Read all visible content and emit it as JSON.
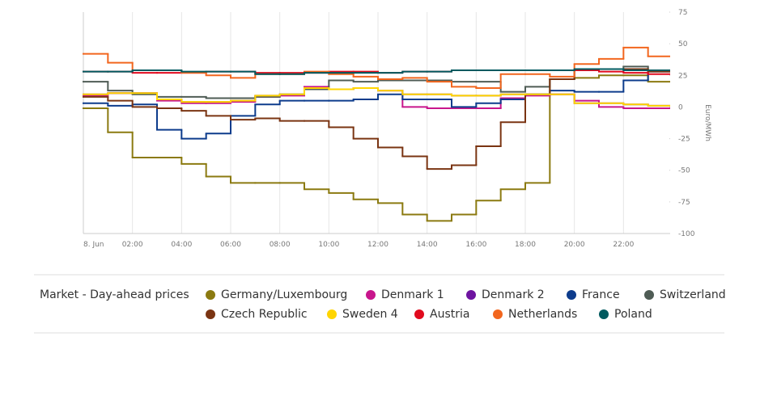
{
  "chart_data": {
    "type": "step",
    "y_axis_label": "Euro/MWh",
    "legend_title": "Market - Day-ahead prices",
    "x": [
      0,
      1,
      2,
      3,
      4,
      5,
      6,
      7,
      8,
      9,
      10,
      11,
      12,
      13,
      14,
      15,
      16,
      17,
      18,
      19,
      20,
      21,
      22,
      23
    ],
    "xlim": [
      0,
      24
    ],
    "xticks": [
      {
        "value": 0,
        "label": "8. Jun"
      },
      {
        "value": 2,
        "label": "02:00"
      },
      {
        "value": 4,
        "label": "04:00"
      },
      {
        "value": 6,
        "label": "06:00"
      },
      {
        "value": 8,
        "label": "08:00"
      },
      {
        "value": 10,
        "label": "10:00"
      },
      {
        "value": 12,
        "label": "12:00"
      },
      {
        "value": 14,
        "label": "14:00"
      },
      {
        "value": 16,
        "label": "16:00"
      },
      {
        "value": 18,
        "label": "18:00"
      },
      {
        "value": 20,
        "label": "20:00"
      },
      {
        "value": 22,
        "label": "22:00"
      }
    ],
    "ylim": [
      -100,
      75
    ],
    "yticks": [
      75,
      50,
      25,
      0,
      -25,
      -50,
      -75,
      -100
    ],
    "grid": true,
    "series": [
      {
        "name": "Germany/Luxembourg",
        "color": "#8b7a10",
        "values": [
          -1,
          -20,
          -40,
          -40,
          -45,
          -55,
          -60,
          -60,
          -60,
          -65,
          -68,
          -73,
          -76,
          -85,
          -90,
          -85,
          -74,
          -65,
          -60,
          22,
          23,
          25,
          25,
          20
        ]
      },
      {
        "name": "Denmark 1",
        "color": "#c8168c",
        "values": [
          9,
          11,
          11,
          5,
          3,
          3,
          4,
          8,
          9,
          16,
          14,
          15,
          13,
          0,
          -1,
          -1,
          -1,
          7,
          9,
          10,
          5,
          0,
          -1,
          -1
        ]
      },
      {
        "name": "Denmark 2",
        "color": "#6e14a0",
        "values": [
          10,
          11,
          11,
          6,
          4,
          4,
          5,
          9,
          10,
          15,
          14,
          15,
          13,
          10,
          10,
          9,
          9,
          10,
          10,
          10,
          3,
          3,
          2,
          1
        ]
      },
      {
        "name": "France",
        "color": "#0d3c8c",
        "values": [
          3,
          1,
          2,
          -18,
          -25,
          -21,
          -7,
          2,
          5,
          5,
          5,
          6,
          10,
          6,
          6,
          0,
          3,
          6,
          10,
          13,
          12,
          12,
          21,
          28
        ]
      },
      {
        "name": "Switzerland",
        "color": "#4f5c55",
        "values": [
          20,
          13,
          10,
          8,
          8,
          7,
          7,
          8,
          10,
          14,
          21,
          20,
          21,
          21,
          21,
          20,
          20,
          12,
          16,
          22,
          29,
          30,
          32,
          29
        ]
      },
      {
        "name": "Czech Republic",
        "color": "#7a3412",
        "values": [
          8,
          5,
          0,
          -1,
          -3,
          -7,
          -10,
          -9,
          -11,
          -11,
          -16,
          -25,
          -32,
          -39,
          -49,
          -46,
          -31,
          -12,
          10,
          22,
          29,
          30,
          30,
          28
        ]
      },
      {
        "name": "Sweden 4",
        "color": "#ffd500",
        "values": [
          10,
          11,
          11,
          6,
          4,
          4,
          5,
          9,
          10,
          15,
          14,
          15,
          13,
          10,
          10,
          9,
          9,
          10,
          10,
          10,
          3,
          3,
          2,
          1
        ]
      },
      {
        "name": "Austria",
        "color": "#e10a1e",
        "values": [
          28,
          28,
          27,
          27,
          27,
          28,
          28,
          27,
          27,
          27,
          28,
          28,
          27,
          28,
          28,
          29,
          29,
          29,
          29,
          29,
          29,
          28,
          27,
          26
        ]
      },
      {
        "name": "Netherlands",
        "color": "#f2661e",
        "values": [
          42,
          35,
          29,
          29,
          27,
          25,
          23,
          26,
          26,
          28,
          26,
          24,
          22,
          23,
          20,
          16,
          15,
          26,
          26,
          24,
          34,
          38,
          47,
          40
        ]
      },
      {
        "name": "Poland",
        "color": "#005a5f",
        "values": [
          28,
          28,
          29,
          29,
          28,
          28,
          28,
          26,
          26,
          27,
          27,
          27,
          27,
          28,
          28,
          29,
          29,
          29,
          29,
          29,
          30,
          30,
          29,
          29
        ]
      }
    ]
  }
}
